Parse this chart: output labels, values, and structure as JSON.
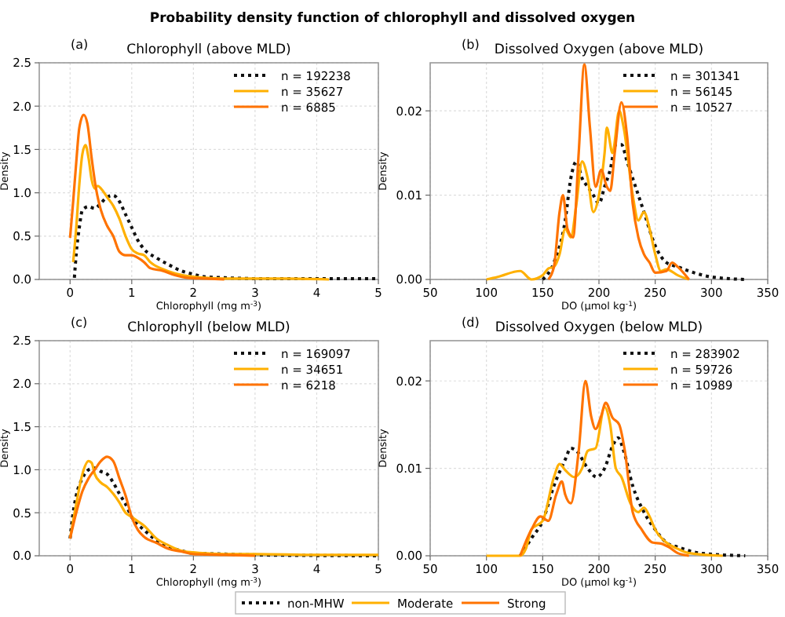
{
  "chart_data": [
    {
      "type": "line",
      "title": "Chlorophyll (above MLD)",
      "xlabel": "Chlorophyll (mg m$^{-3}$)",
      "ylabel": "Density",
      "annotations": [
        "Probability density function of chlorophyll and dissolved oxygen",
        "(a)"
      ],
      "xlim": [
        -0.5,
        5
      ],
      "xticks": [
        0,
        1,
        2,
        3,
        4,
        5
      ],
      "ylim": [
        0,
        2.5
      ],
      "yticks": [
        {
          "value": 0,
          "label": "0.0"
        },
        {
          "value": 0.5,
          "label": "0.5"
        },
        {
          "value": 1,
          "label": "1.0"
        },
        {
          "value": 1.5,
          "label": "1.5"
        },
        {
          "value": 2,
          "label": "2.0"
        },
        {
          "value": 2.5,
          "label": "2.5"
        }
      ],
      "grid": true,
      "legend": "top right",
      "series": [
        {
          "name": "n = 192238",
          "color": "#111111",
          "line_style": "dotted",
          "x": [
            0.07,
            0.1,
            0.15,
            0.2,
            0.3,
            0.4,
            0.5,
            0.6,
            0.7,
            0.8,
            0.9,
            1.0,
            1.1,
            1.2,
            1.4,
            1.6,
            1.8,
            2.0,
            2.2,
            2.5,
            3,
            4,
            5
          ],
          "values": [
            0.02,
            0.3,
            0.6,
            0.8,
            0.84,
            0.82,
            0.88,
            0.95,
            0.97,
            0.9,
            0.75,
            0.6,
            0.45,
            0.35,
            0.25,
            0.17,
            0.1,
            0.06,
            0.03,
            0.02,
            0.01,
            0.01,
            0.01
          ]
        },
        {
          "name": "n = 35627",
          "color": "#ffb000",
          "x": [
            0.05,
            0.1,
            0.15,
            0.2,
            0.25,
            0.3,
            0.35,
            0.4,
            0.45,
            0.5,
            0.6,
            0.7,
            0.8,
            0.9,
            1.0,
            1.1,
            1.2,
            1.3,
            1.5,
            1.7,
            2.0,
            2.5,
            3.5,
            4.2
          ],
          "values": [
            0.2,
            0.6,
            1.1,
            1.45,
            1.55,
            1.4,
            1.15,
            1.05,
            1.08,
            1.05,
            0.95,
            0.85,
            0.7,
            0.5,
            0.35,
            0.3,
            0.28,
            0.2,
            0.12,
            0.07,
            0.03,
            0.01,
            0.01,
            0
          ]
        },
        {
          "name": "n = 6885",
          "color": "#ff7300",
          "x": [
            0,
            0.05,
            0.1,
            0.15,
            0.22,
            0.28,
            0.35,
            0.42,
            0.5,
            0.6,
            0.7,
            0.8,
            0.9,
            1.0,
            1.1,
            1.2,
            1.3,
            1.5,
            1.7,
            1.9,
            2.2,
            2.5
          ],
          "values": [
            0.48,
            0.9,
            1.35,
            1.75,
            1.9,
            1.8,
            1.4,
            1.05,
            0.8,
            0.62,
            0.5,
            0.32,
            0.28,
            0.28,
            0.25,
            0.2,
            0.13,
            0.1,
            0.05,
            0.02,
            0.01,
            0
          ]
        }
      ]
    },
    {
      "type": "line",
      "title": "Dissolved Oxygen (above MLD)",
      "xlabel": "DO (µmol kg$^{-1}$)",
      "ylabel": "Density",
      "annotations": [
        "(b)"
      ],
      "xlim": [
        50,
        350
      ],
      "xticks": [
        50,
        100,
        150,
        200,
        250,
        300,
        350
      ],
      "ylim": [
        0,
        0.0257
      ],
      "yticks": [
        {
          "value": 0,
          "label": "0.00"
        },
        {
          "value": 0.01,
          "label": "0.01"
        },
        {
          "value": 0.02,
          "label": "0.02"
        }
      ],
      "grid": true,
      "legend": "top right",
      "series": [
        {
          "name": "n = 301341",
          "color": "#111111",
          "line_style": "dotted",
          "x": [
            150,
            160,
            170,
            175,
            180,
            185,
            190,
            195,
            200,
            205,
            210,
            215,
            220,
            225,
            230,
            240,
            250,
            260,
            270,
            280,
            300,
            330
          ],
          "values": [
            0,
            0.002,
            0.007,
            0.012,
            0.014,
            0.012,
            0.011,
            0.01,
            0.009,
            0.011,
            0.013,
            0.016,
            0.016,
            0.014,
            0.012,
            0.008,
            0.004,
            0.002,
            0.0015,
            0.001,
            0.0003,
            0
          ]
        },
        {
          "name": "n = 56145",
          "color": "#ffb000",
          "x": [
            100,
            110,
            130,
            140,
            150,
            155,
            160,
            165,
            170,
            175,
            180,
            185,
            190,
            195,
            200,
            205,
            207,
            212,
            218,
            222,
            230,
            235,
            240,
            245,
            250,
            255,
            260,
            270,
            280
          ],
          "values": [
            0,
            0.0003,
            0.001,
            0,
            0.0005,
            0.0013,
            0.0015,
            0.003,
            0.006,
            0.005,
            0.009,
            0.014,
            0.012,
            0.008,
            0.01,
            0.015,
            0.018,
            0.015,
            0.02,
            0.018,
            0.01,
            0.007,
            0.008,
            0.006,
            0.003,
            0.001,
            0.0012,
            0.0005,
            0
          ]
        },
        {
          "name": "n = 10527",
          "color": "#ff7300",
          "x": [
            155,
            160,
            165,
            168,
            172,
            177,
            182,
            187,
            192,
            197,
            202,
            207,
            210,
            214,
            220,
            225,
            230,
            235,
            240,
            245,
            250,
            260,
            265,
            270,
            280
          ],
          "values": [
            0,
            0.0015,
            0.008,
            0.01,
            0.006,
            0.005,
            0.015,
            0.0255,
            0.018,
            0.011,
            0.013,
            0.011,
            0.0105,
            0.015,
            0.021,
            0.017,
            0.009,
            0.005,
            0.003,
            0.002,
            0.0008,
            0.001,
            0.002,
            0.0015,
            0
          ]
        }
      ]
    },
    {
      "type": "line",
      "title": "Chlorophyll (below MLD)",
      "xlabel": "Chlorophyll (mg m$^{-3}$)",
      "ylabel": "Density",
      "annotations": [
        "(c)"
      ],
      "xlim": [
        -0.5,
        5
      ],
      "xticks": [
        0,
        1,
        2,
        3,
        4,
        5
      ],
      "ylim": [
        0,
        2.5
      ],
      "yticks": [
        {
          "value": 0,
          "label": "0.0"
        },
        {
          "value": 0.5,
          "label": "0.5"
        },
        {
          "value": 1,
          "label": "1.0"
        },
        {
          "value": 1.5,
          "label": "1.5"
        },
        {
          "value": 2,
          "label": "2.0"
        },
        {
          "value": 2.5,
          "label": "2.5"
        }
      ],
      "grid": true,
      "legend": "top right",
      "series": [
        {
          "name": "n = 169097",
          "color": "#111111",
          "line_style": "dotted",
          "x": [
            0,
            0.05,
            0.1,
            0.2,
            0.3,
            0.4,
            0.5,
            0.6,
            0.7,
            0.8,
            0.9,
            1.0,
            1.2,
            1.4,
            1.6,
            1.8,
            2.0,
            2.5,
            3,
            5
          ],
          "values": [
            0.2,
            0.5,
            0.7,
            0.9,
            1.0,
            1.02,
            0.98,
            0.95,
            0.85,
            0.72,
            0.6,
            0.45,
            0.3,
            0.18,
            0.1,
            0.06,
            0.03,
            0.02,
            0.01,
            0
          ]
        },
        {
          "name": "n = 34651",
          "color": "#ffb000",
          "x": [
            0,
            0.1,
            0.2,
            0.3,
            0.35,
            0.4,
            0.5,
            0.6,
            0.7,
            0.8,
            0.9,
            1.0,
            1.1,
            1.2,
            1.4,
            1.6,
            1.8,
            2.0,
            2.5,
            3,
            4,
            5
          ],
          "values": [
            0.2,
            0.6,
            0.95,
            1.1,
            1.08,
            0.95,
            0.85,
            0.8,
            0.72,
            0.62,
            0.5,
            0.45,
            0.4,
            0.35,
            0.2,
            0.12,
            0.06,
            0.04,
            0.02,
            0.02,
            0.01,
            0.01
          ]
        },
        {
          "name": "n = 6218",
          "color": "#ff7300",
          "x": [
            0,
            0.1,
            0.2,
            0.3,
            0.4,
            0.5,
            0.6,
            0.7,
            0.8,
            0.9,
            1.0,
            1.1,
            1.2,
            1.4,
            1.6,
            1.8,
            2.0,
            2.5,
            3
          ],
          "values": [
            0.2,
            0.5,
            0.75,
            0.9,
            1.0,
            1.1,
            1.15,
            1.1,
            0.9,
            0.7,
            0.45,
            0.3,
            0.22,
            0.15,
            0.08,
            0.05,
            0.02,
            0.01,
            0
          ]
        }
      ]
    },
    {
      "type": "line",
      "title": "Dissolved Oxygen (below MLD)",
      "xlabel": "DO (µmol kg$^{-1}$)",
      "ylabel": "Density",
      "annotations": [
        "(d)",
        "non-MHW",
        "Moderate",
        "Strong"
      ],
      "xlim": [
        50,
        350
      ],
      "xticks": [
        50,
        100,
        150,
        200,
        250,
        300,
        350
      ],
      "ylim": [
        0,
        0.0246
      ],
      "yticks": [
        {
          "value": 0,
          "label": "0.00"
        },
        {
          "value": 0.01,
          "label": "0.01"
        },
        {
          "value": 0.02,
          "label": "0.02"
        }
      ],
      "grid": true,
      "legend": "top right",
      "series": [
        {
          "name": "n = 283902",
          "color": "#111111",
          "line_style": "dotted",
          "x": [
            130,
            140,
            150,
            160,
            170,
            175,
            180,
            190,
            198,
            205,
            212,
            217,
            222,
            230,
            240,
            250,
            260,
            270,
            290,
            330
          ],
          "values": [
            0,
            0.002,
            0.004,
            0.008,
            0.011,
            0.0123,
            0.012,
            0.01,
            0.009,
            0.01,
            0.0125,
            0.0135,
            0.012,
            0.008,
            0.005,
            0.003,
            0.0015,
            0.001,
            0.0003,
            0
          ]
        },
        {
          "name": "n = 59726",
          "color": "#ffb000",
          "x": [
            100,
            130,
            135,
            140,
            150,
            160,
            165,
            170,
            178,
            185,
            190,
            197,
            205,
            210,
            215,
            220,
            228,
            235,
            240,
            245,
            250,
            260,
            270,
            280,
            310
          ],
          "values": [
            0,
            0,
            0.0008,
            0.003,
            0.004,
            0.009,
            0.0105,
            0.0098,
            0.009,
            0.01,
            0.012,
            0.0123,
            0.017,
            0.015,
            0.01,
            0.009,
            0.006,
            0.005,
            0.0055,
            0.0045,
            0.003,
            0.0015,
            0.0008,
            0.0003,
            0
          ]
        },
        {
          "name": "n = 10989",
          "color": "#ff7300",
          "x": [
            130,
            140,
            148,
            155,
            162,
            167,
            170,
            175,
            182,
            188,
            193,
            197,
            202,
            206,
            212,
            218,
            223,
            230,
            238,
            248,
            255,
            262,
            270,
            280
          ],
          "values": [
            0,
            0.003,
            0.0045,
            0.004,
            0.007,
            0.0085,
            0.007,
            0.006,
            0.012,
            0.02,
            0.016,
            0.0145,
            0.016,
            0.0175,
            0.0158,
            0.015,
            0.012,
            0.005,
            0.003,
            0.0015,
            0.0014,
            0.001,
            0.0003,
            0
          ]
        }
      ]
    }
  ]
}
